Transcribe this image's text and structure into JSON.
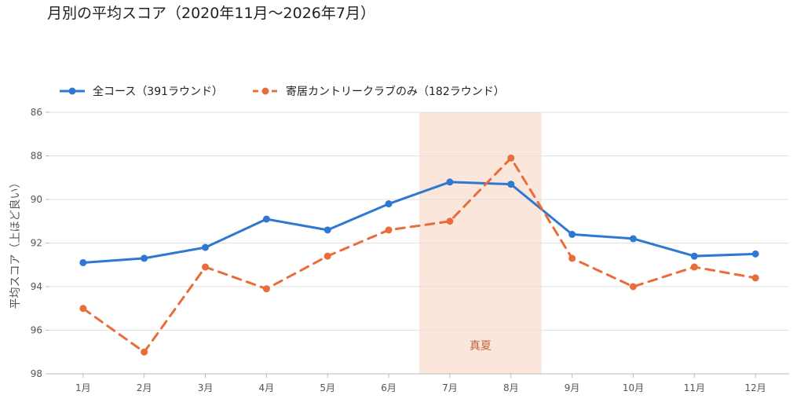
{
  "chart_data": {
    "type": "line",
    "title": "月別の平均スコア（2020年11月〜2026年7月）",
    "xlabel": "",
    "ylabel": "平均スコア（上ほど良い）",
    "categories": [
      "1月",
      "2月",
      "3月",
      "4月",
      "5月",
      "6月",
      "7月",
      "8月",
      "9月",
      "10月",
      "11月",
      "12月"
    ],
    "series": [
      {
        "name": "全コース（391ラウンド）",
        "color": "#2e78d2",
        "line_style": "solid",
        "marker": "circle",
        "values": [
          92.9,
          92.7,
          92.2,
          90.9,
          91.4,
          90.2,
          89.2,
          89.3,
          91.6,
          91.8,
          92.6,
          92.5
        ]
      },
      {
        "name": "寄居カントリークラブのみ（182ラウンド）",
        "color": "#e86d3a",
        "line_style": "dashed",
        "marker": "circle",
        "values": [
          95.0,
          97.0,
          93.1,
          94.1,
          92.6,
          91.4,
          91.0,
          88.1,
          92.7,
          94.0,
          93.1,
          93.6
        ]
      }
    ],
    "ylim": [
      86,
      98
    ],
    "y_inverted": true,
    "yticks": [
      86,
      88,
      90,
      92,
      94,
      96,
      98
    ],
    "grid": "horizontal",
    "legend_position": "top-left",
    "shaded_band": {
      "label": "真夏",
      "from": "7月",
      "to": "8月",
      "color": "#fbe6dc",
      "label_color": "#c4623a"
    },
    "axis_color": "#bbbbbb",
    "grid_color": "#e2e2e2"
  }
}
